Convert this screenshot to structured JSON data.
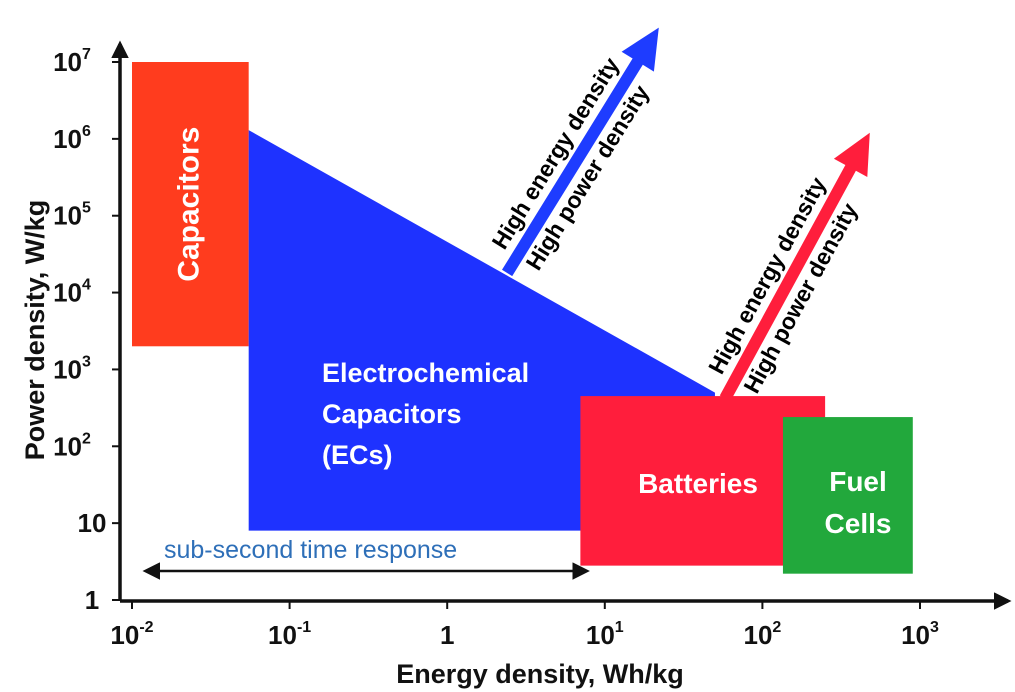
{
  "chart_data": {
    "type": "area",
    "xlabel": "Energy density, Wh/kg",
    "ylabel": "Power density, W/kg",
    "x_scale": "log",
    "y_scale": "log",
    "xlim": [
      0.01,
      1000
    ],
    "ylim": [
      1,
      10000000
    ],
    "x_ticks": [
      {
        "base": "10",
        "exp": "-2"
      },
      {
        "base": "10",
        "exp": "-1"
      },
      {
        "base": "1",
        "exp": ""
      },
      {
        "base": "10",
        "exp": "1"
      },
      {
        "base": "10",
        "exp": "2"
      },
      {
        "base": "10",
        "exp": "3"
      }
    ],
    "y_ticks": [
      {
        "base": "1",
        "exp": ""
      },
      {
        "base": "10",
        "exp": ""
      },
      {
        "base": "10",
        "exp": "2"
      },
      {
        "base": "10",
        "exp": "3"
      },
      {
        "base": "10",
        "exp": "4"
      },
      {
        "base": "10",
        "exp": "5"
      },
      {
        "base": "10",
        "exp": "6"
      },
      {
        "base": "10",
        "exp": "7"
      }
    ],
    "regions": [
      {
        "lines": [
          "Capacitors"
        ],
        "color": "#ff3c1e",
        "shape": "rect",
        "label_rotated": true,
        "energy": [
          0.01,
          0.055
        ],
        "power": [
          2000,
          10000000
        ]
      },
      {
        "lines": [
          "Electrochemical",
          "Capacitors",
          "(ECs)"
        ],
        "color": "#1e32ff",
        "shape": "polygon",
        "points": [
          [
            0.055,
            1300000
          ],
          [
            50,
            500
          ],
          [
            50,
            8
          ],
          [
            0.055,
            8
          ]
        ]
      },
      {
        "lines": [
          "Batteries"
        ],
        "color": "#ff1e3c",
        "shape": "rect",
        "energy": [
          7,
          250
        ],
        "power": [
          2.8,
          450
        ]
      },
      {
        "lines": [
          "Fuel",
          "Cells"
        ],
        "color": "#22a83c",
        "shape": "rect",
        "energy": [
          135,
          900
        ],
        "power": [
          2.2,
          240
        ]
      }
    ],
    "trend_arrows": [
      {
        "color": "#1e3cff",
        "from": [
          2.4,
          18000
        ],
        "to": [
          22,
          28000000
        ],
        "labels": [
          "High energy density",
          "High power density"
        ]
      },
      {
        "color": "#ff1e3c",
        "from": [
          58,
          420
        ],
        "to": [
          480,
          1200000
        ],
        "labels": [
          "High energy density",
          "High power density"
        ]
      }
    ],
    "annotations": [
      {
        "text": "sub-second time response",
        "from": 0.01,
        "to": 7,
        "power": 2.6,
        "arrow": "double"
      }
    ]
  }
}
